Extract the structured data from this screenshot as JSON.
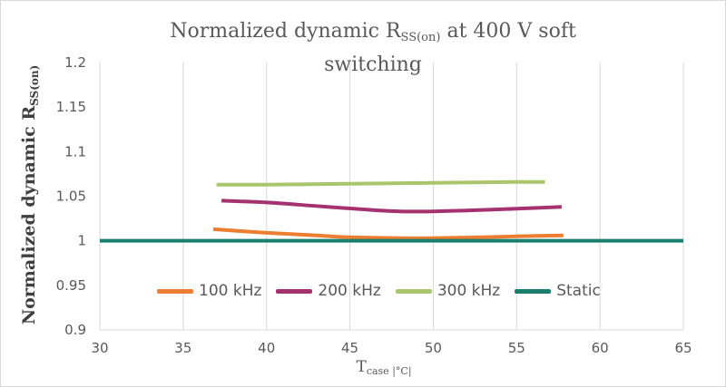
{
  "chart_data": {
    "type": "line",
    "title": {
      "prefix": "Normalized dynamic R",
      "subscript": "SS(on)",
      "suffix": " at 400 V soft switching"
    },
    "ylabel": {
      "prefix": "Normalized dynamic R",
      "subscript": "SS(on)"
    },
    "xlabel": {
      "prefix": "T",
      "subscript": "case |°C|"
    },
    "xlim": [
      30,
      65
    ],
    "ylim": [
      0.9,
      1.2
    ],
    "x_ticks": [
      30,
      35,
      40,
      45,
      50,
      55,
      60,
      65
    ],
    "y_ticks": [
      "0.9",
      "0.95",
      "1",
      "1.05",
      "1.1",
      "1.15",
      "1.2"
    ],
    "grid": {
      "vertical": true,
      "horizontal": false
    },
    "legend_position": "bottom-inside",
    "series": [
      {
        "name": "100 kHz",
        "color": "#ED7D31",
        "points": [
          [
            36.8,
            1.013
          ],
          [
            40,
            1.009
          ],
          [
            43,
            1.006
          ],
          [
            45,
            1.004
          ],
          [
            48,
            1.003
          ],
          [
            50,
            1.003
          ],
          [
            53,
            1.004
          ],
          [
            55,
            1.005
          ],
          [
            57.8,
            1.006
          ]
        ]
      },
      {
        "name": "200 kHz",
        "color": "#A5326F",
        "points": [
          [
            37.3,
            1.045
          ],
          [
            40,
            1.043
          ],
          [
            43,
            1.039
          ],
          [
            46,
            1.035
          ],
          [
            48,
            1.033
          ],
          [
            50,
            1.033
          ],
          [
            52,
            1.034
          ],
          [
            55,
            1.036
          ],
          [
            57.7,
            1.038
          ]
        ]
      },
      {
        "name": "300 kHz",
        "color": "#A9C66A",
        "points": [
          [
            37.0,
            1.063
          ],
          [
            40,
            1.063
          ],
          [
            45,
            1.064
          ],
          [
            50,
            1.065
          ],
          [
            55,
            1.066
          ],
          [
            56.7,
            1.066
          ]
        ]
      },
      {
        "name": "Static",
        "color": "#1A7F6D",
        "points": [
          [
            30,
            1.0
          ],
          [
            65,
            1.0
          ]
        ]
      }
    ]
  }
}
